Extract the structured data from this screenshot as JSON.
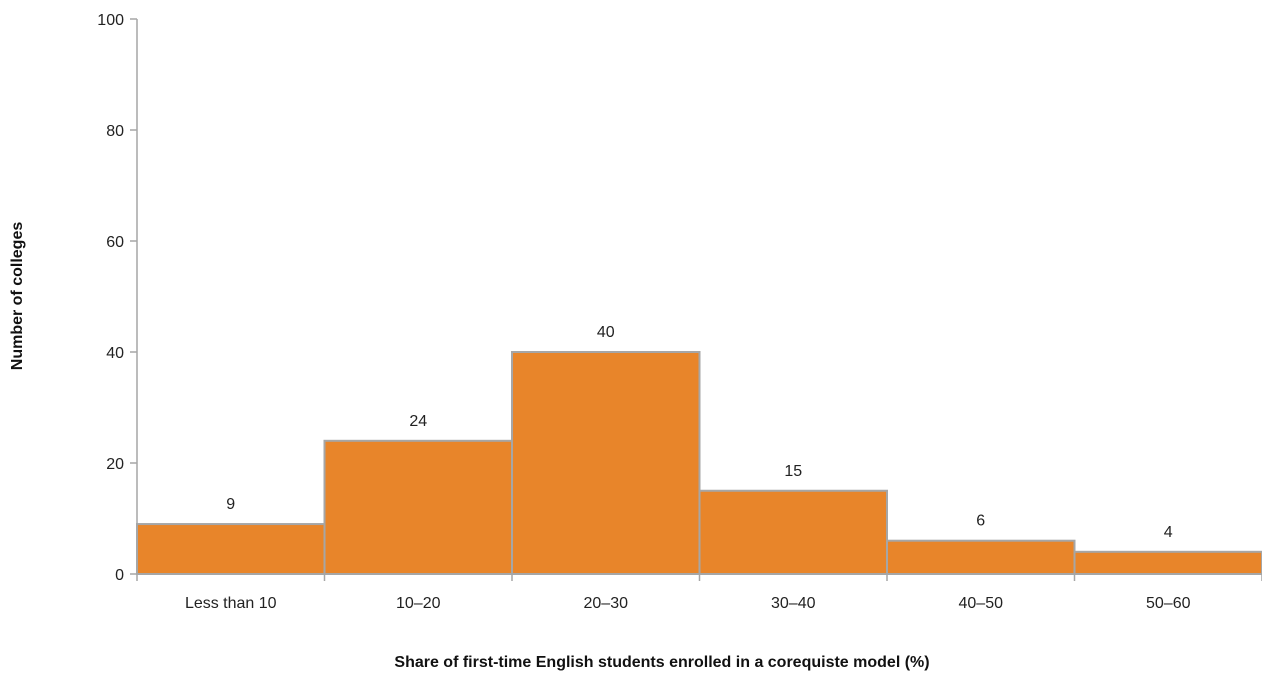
{
  "chart_data": {
    "type": "bar",
    "title": "",
    "xlabel": "Share of first-time English students enrolled in a corequiste model (%)",
    "ylabel": "Number of colleges",
    "categories": [
      "Less than 10",
      "10–20",
      "20–30",
      "30–40",
      "40–50",
      "50–60"
    ],
    "values": [
      9,
      24,
      40,
      15,
      6,
      4
    ],
    "data_labels": [
      "9",
      "24",
      "40",
      "15",
      "6",
      "4"
    ],
    "ylim": [
      0,
      100
    ],
    "yticks": [
      0,
      20,
      40,
      60,
      80,
      100
    ],
    "ytick_labels": [
      "0",
      "20",
      "40",
      "60",
      "80",
      "100"
    ],
    "grid": false,
    "legend": "none",
    "colors": {
      "bar_fill": "#E8852A",
      "bar_stroke": "#A6A6A6",
      "axis": "#A6A6A6"
    }
  }
}
